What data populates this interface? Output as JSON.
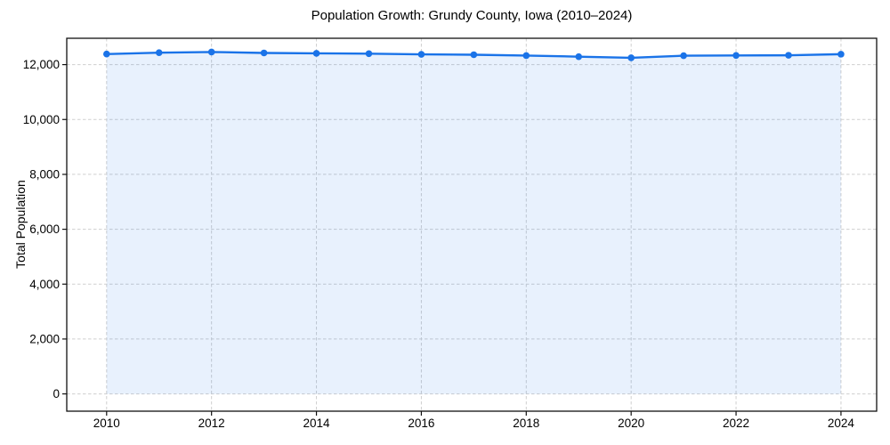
{
  "figure": {
    "background": "#ffffff"
  },
  "chart_data": {
    "type": "line",
    "title": "Population Growth: Grundy County, Iowa (2010–2024)",
    "xlabel": "",
    "ylabel": "Total Population",
    "x": [
      2010,
      2011,
      2012,
      2013,
      2014,
      2015,
      2016,
      2017,
      2018,
      2019,
      2020,
      2021,
      2022,
      2023,
      2024
    ],
    "series": [
      {
        "name": "Total Population",
        "values": [
          12385,
          12435,
          12460,
          12425,
          12410,
          12400,
          12375,
          12360,
          12330,
          12290,
          12250,
          12325,
          12335,
          12340,
          12380
        ]
      }
    ],
    "xticks": {
      "values": [
        2010,
        2012,
        2014,
        2016,
        2018,
        2020,
        2022,
        2024
      ],
      "labels": [
        "2010",
        "2012",
        "2014",
        "2016",
        "2018",
        "2020",
        "2022",
        "2024"
      ]
    },
    "yticks": {
      "values": [
        0,
        2000,
        4000,
        6000,
        8000,
        10000,
        12000
      ],
      "labels": [
        "0",
        "2,000",
        "4,000",
        "6,000",
        "8,000",
        "10,000",
        "12,000"
      ]
    },
    "xlim": [
      2009.24,
      2024.68
    ],
    "ylim": [
      -630,
      12960
    ],
    "grid": true,
    "grid_style": "dashed",
    "legend": false,
    "marker": "circle",
    "area_fill": true,
    "colors": {
      "line": "#1a73e8",
      "marker": "#1a73e8",
      "fill": "#1a73e8",
      "fill_opacity": 0.1,
      "grid": "#cfcfcf",
      "spine": "#111111",
      "tick": "#111111",
      "text": "#000000"
    }
  }
}
